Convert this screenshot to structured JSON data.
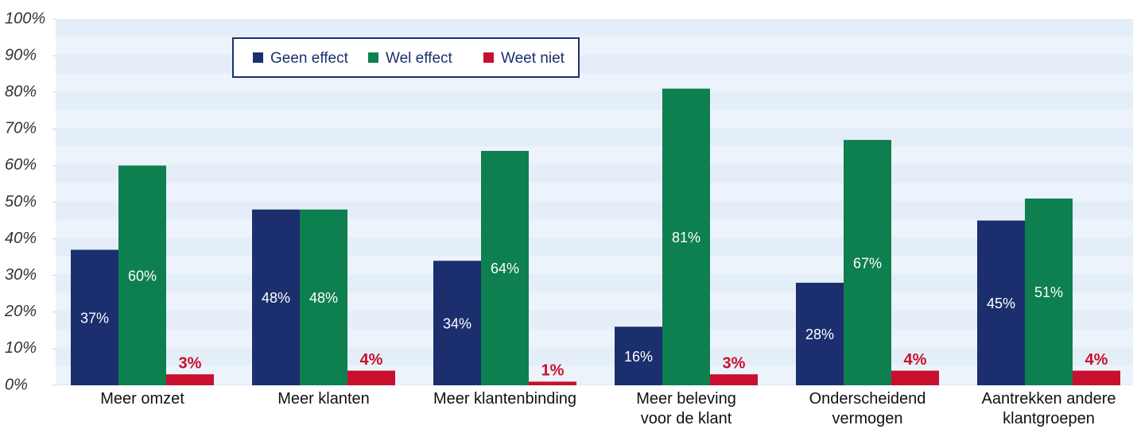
{
  "chart_data": {
    "type": "bar",
    "categories": [
      "Meer omzet",
      "Meer klanten",
      "Meer klantenbinding",
      "Meer beleving\nvoor de klant",
      "Onderscheidend\nvermogen",
      "Aantrekken andere\nklantgroepen"
    ],
    "series": [
      {
        "name": "Geen effect",
        "color": "#1b2f6e",
        "values": [
          37,
          48,
          34,
          16,
          28,
          45
        ],
        "value_labels": [
          "37%",
          "48%",
          "34%",
          "16%",
          "28%",
          "45%"
        ]
      },
      {
        "name": "Wel effect",
        "color": "#0e7f4f",
        "values": [
          60,
          48,
          64,
          81,
          67,
          51
        ],
        "value_labels": [
          "60%",
          "48%",
          "64%",
          "81%",
          "67%",
          "51%"
        ]
      },
      {
        "name": "Weet niet",
        "color": "#c8102e",
        "values": [
          3,
          4,
          1,
          3,
          4,
          4
        ],
        "value_labels": [
          "3%",
          "4%",
          "1%",
          "3%",
          "4%",
          "4%"
        ]
      }
    ],
    "ylim": [
      0,
      100
    ],
    "yticks": [
      {
        "value": 0,
        "label": "0%"
      },
      {
        "value": 10,
        "label": "10%"
      },
      {
        "value": 20,
        "label": "20%"
      },
      {
        "value": 30,
        "label": "30%"
      },
      {
        "value": 40,
        "label": "40%"
      },
      {
        "value": 50,
        "label": "50%"
      },
      {
        "value": 60,
        "label": "60%"
      },
      {
        "value": 70,
        "label": "70%"
      },
      {
        "value": 80,
        "label": "80%"
      },
      {
        "value": 90,
        "label": "90%"
      },
      {
        "value": 100,
        "label": "100%"
      }
    ],
    "legend": "top-left"
  }
}
